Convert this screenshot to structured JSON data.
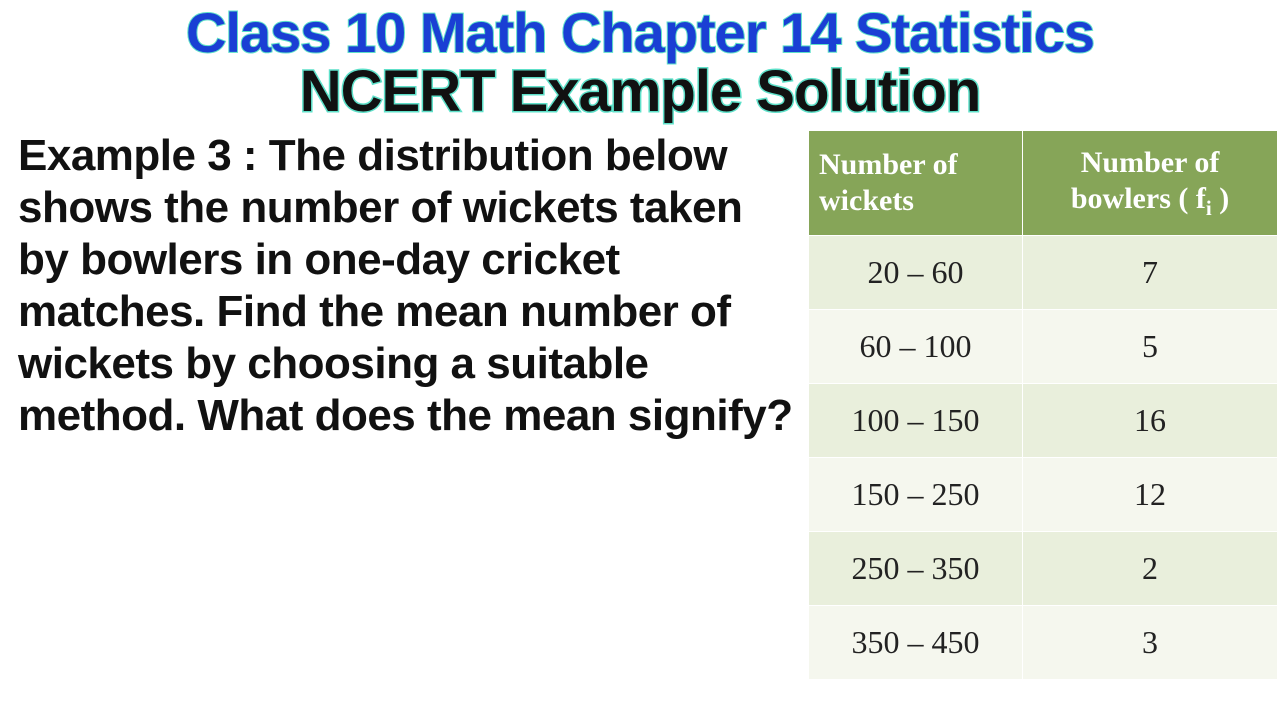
{
  "heading": {
    "line1": "Class 10 Math Chapter 14 Statistics",
    "line2": "NCERT Example Solution"
  },
  "example": {
    "label": "Example 3 : ",
    "body": "The distribution below shows the number of wickets taken by bowlers in one-day cricket matches. Find the mean number of wickets by choosing a suitable method. What does the mean signify?"
  },
  "table": {
    "col1_header": "Number of wickets",
    "col2_header_prefix": "Number of bowlers ( f",
    "col2_header_suffix": " )",
    "header_bg": "#86a558",
    "header_color": "#ffffff",
    "row_odd_bg": "#e9efdc",
    "row_even_bg": "#f5f7ee",
    "cell_fontsize": 32,
    "header_fontsize": 30,
    "rows": [
      {
        "range": "20 – 60",
        "freq": "7"
      },
      {
        "range": "60 – 100",
        "freq": "5"
      },
      {
        "range": "100 – 150",
        "freq": "16"
      },
      {
        "range": "150 – 250",
        "freq": "12"
      },
      {
        "range": "250 – 350",
        "freq": "2"
      },
      {
        "range": "350 – 450",
        "freq": "3"
      }
    ]
  },
  "colors": {
    "title1": "#1a3fd4",
    "title_outline": "#5ee0c9",
    "title2": "#111111",
    "body_text": "#111111",
    "background": "#ffffff"
  },
  "typography": {
    "title1_fontsize": 56,
    "title2_fontsize": 58,
    "body_fontsize": 44,
    "body_weight": 900
  }
}
